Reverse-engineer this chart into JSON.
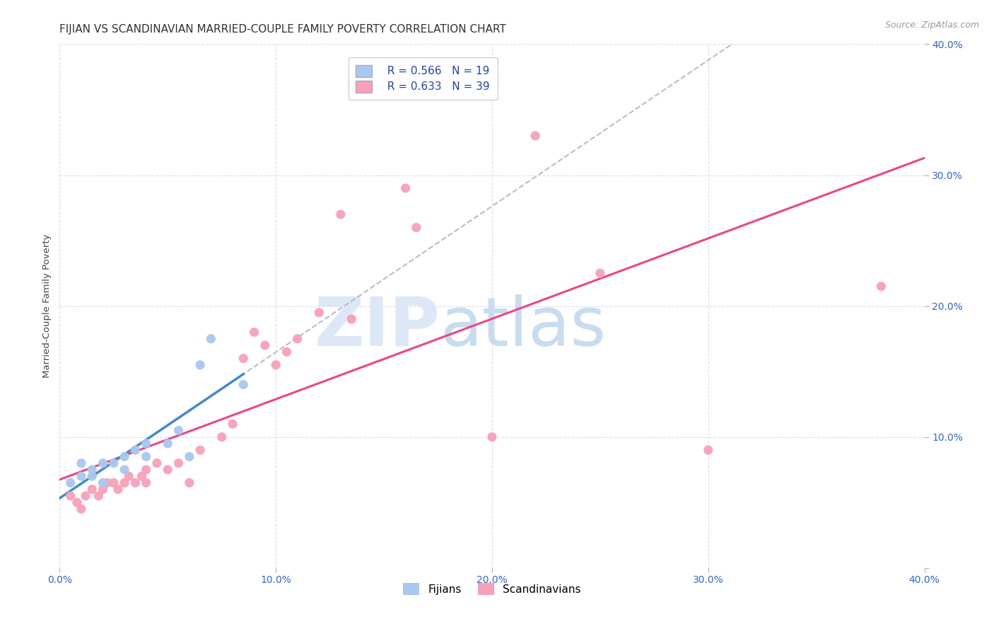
{
  "title": "FIJIAN VS SCANDINAVIAN MARRIED-COUPLE FAMILY POVERTY CORRELATION CHART",
  "source": "Source: ZipAtlas.com",
  "ylabel": "Married-Couple Family Poverty",
  "xlim": [
    0.0,
    0.4
  ],
  "ylim": [
    0.0,
    0.4
  ],
  "xtick_values": [
    0.0,
    0.1,
    0.2,
    0.3,
    0.4
  ],
  "ytick_values": [
    0.0,
    0.1,
    0.2,
    0.3,
    0.4
  ],
  "fijian_color": "#a8c8f0",
  "scandinavian_color": "#f8a0b8",
  "fijian_line_color": "#4488cc",
  "scandinavian_line_color": "#ee4488",
  "dashed_line_color": "#bbbbcc",
  "watermark_color_zip": "#dce8f5",
  "watermark_color_atlas": "#c8dcf0",
  "R_fijian": 0.566,
  "N_fijian": 19,
  "R_scandinavian": 0.633,
  "N_scandinavian": 39,
  "fijians_x": [
    0.005,
    0.01,
    0.01,
    0.015,
    0.015,
    0.02,
    0.02,
    0.025,
    0.03,
    0.03,
    0.035,
    0.04,
    0.04,
    0.05,
    0.055,
    0.06,
    0.065,
    0.07,
    0.085
  ],
  "fijians_y": [
    0.065,
    0.07,
    0.08,
    0.07,
    0.075,
    0.065,
    0.08,
    0.08,
    0.075,
    0.085,
    0.09,
    0.085,
    0.095,
    0.095,
    0.105,
    0.085,
    0.155,
    0.175,
    0.14
  ],
  "scandinavians_x": [
    0.005,
    0.008,
    0.01,
    0.012,
    0.015,
    0.018,
    0.02,
    0.022,
    0.025,
    0.027,
    0.03,
    0.032,
    0.035,
    0.038,
    0.04,
    0.04,
    0.045,
    0.05,
    0.055,
    0.06,
    0.065,
    0.075,
    0.08,
    0.085,
    0.09,
    0.095,
    0.1,
    0.105,
    0.11,
    0.12,
    0.13,
    0.135,
    0.16,
    0.165,
    0.2,
    0.22,
    0.25,
    0.3,
    0.38
  ],
  "scandinavians_y": [
    0.055,
    0.05,
    0.045,
    0.055,
    0.06,
    0.055,
    0.06,
    0.065,
    0.065,
    0.06,
    0.065,
    0.07,
    0.065,
    0.07,
    0.075,
    0.065,
    0.08,
    0.075,
    0.08,
    0.065,
    0.09,
    0.1,
    0.11,
    0.16,
    0.18,
    0.17,
    0.155,
    0.165,
    0.175,
    0.195,
    0.27,
    0.19,
    0.29,
    0.26,
    0.1,
    0.33,
    0.225,
    0.09,
    0.215
  ],
  "background_color": "#ffffff",
  "grid_color": "#ddddee",
  "title_fontsize": 11,
  "label_fontsize": 9.5,
  "tick_fontsize": 10,
  "legend_fontsize": 11,
  "source_fontsize": 9
}
